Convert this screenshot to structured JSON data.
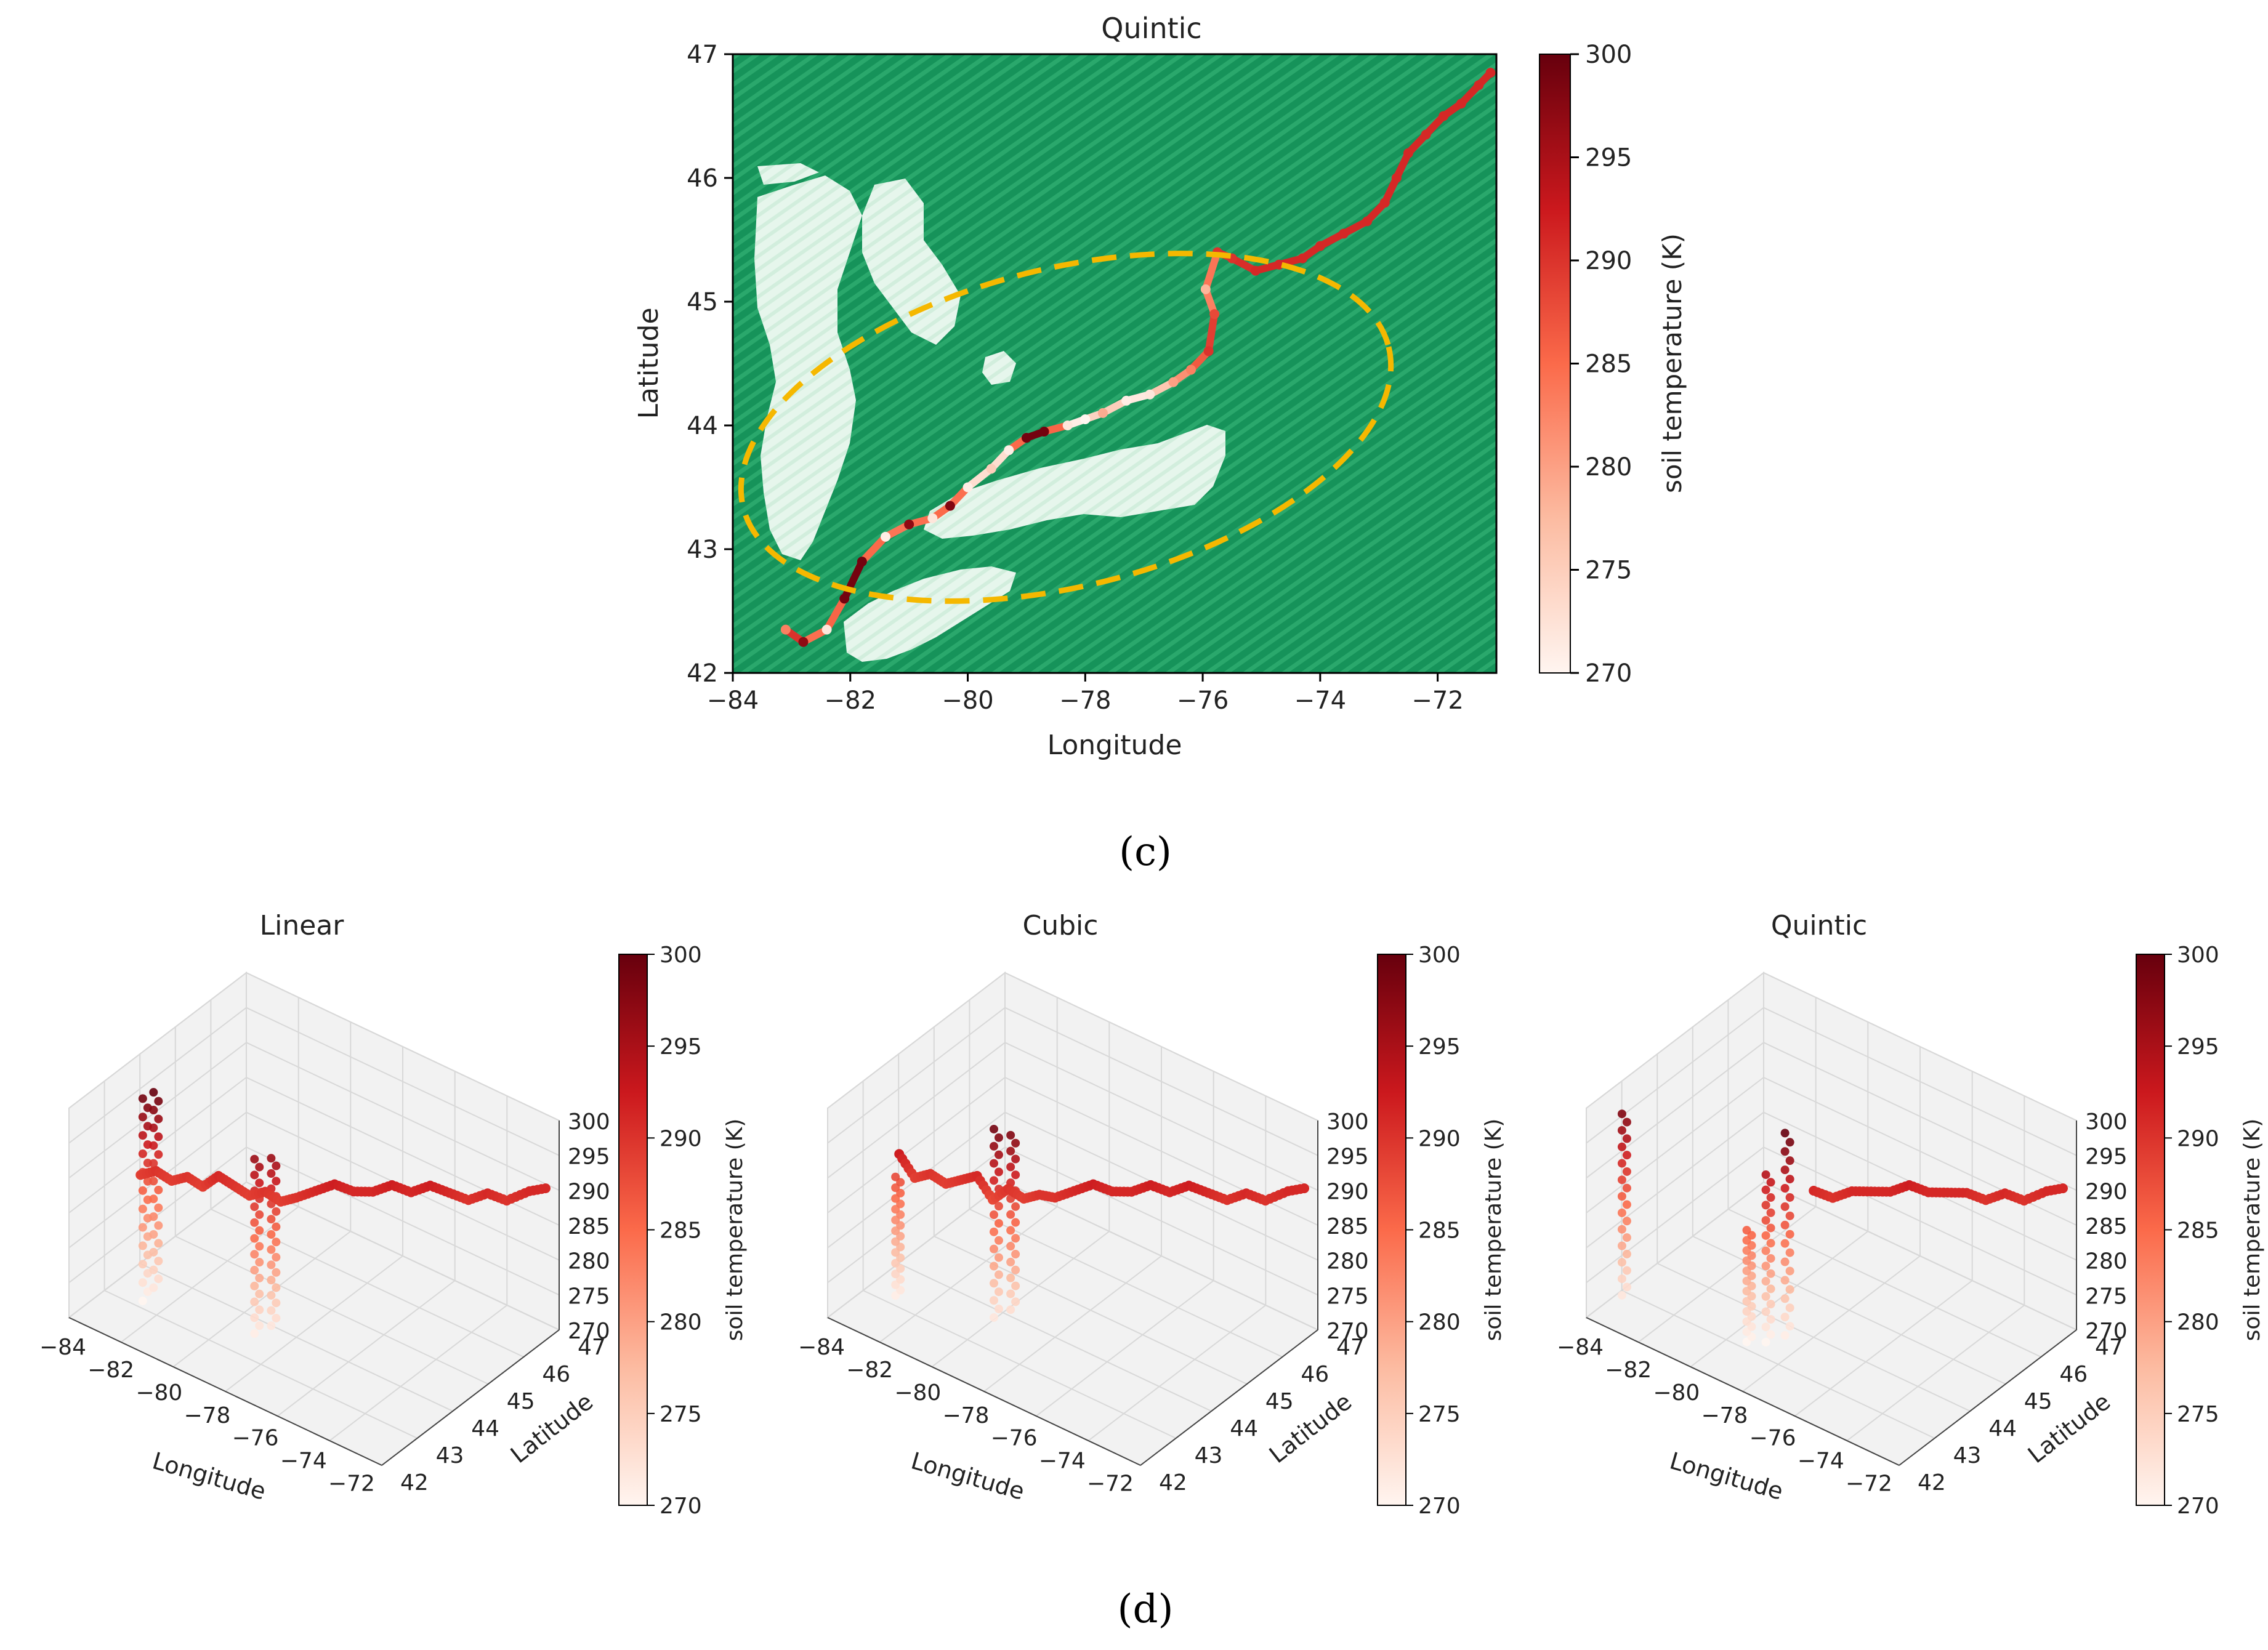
{
  "chart_data": [
    {
      "id": "c",
      "type": "scatter",
      "panel_label": "(c)",
      "title": "Quintic",
      "xlabel": "Longitude",
      "ylabel": "Latitude",
      "xlim": [
        -84,
        -71
      ],
      "ylim": [
        42,
        47
      ],
      "xticks": [
        -84,
        -82,
        -80,
        -78,
        -76,
        -74,
        -72
      ],
      "xtick_labels": [
        "−84",
        "−82",
        "−80",
        "−78",
        "−76",
        "−74",
        "−72"
      ],
      "yticks": [
        42,
        43,
        44,
        45,
        46,
        47
      ],
      "ytick_labels": [
        "42",
        "43",
        "44",
        "45",
        "46",
        "47"
      ],
      "colorbar": {
        "label": "soil temperature (K)",
        "range": [
          270,
          300
        ],
        "ticks": [
          270,
          275,
          280,
          285,
          290,
          295,
          300
        ],
        "tick_labels": [
          "270",
          "275",
          "280",
          "285",
          "290",
          "295",
          "300"
        ],
        "colors": [
          "#fff5f0",
          "#fcbba1",
          "#fb6a4a",
          "#cb181d",
          "#67000d"
        ]
      },
      "background": {
        "land_color": "#1a9a5c",
        "water_color": "#e3f4ea"
      },
      "track": {
        "lon": [
          -83.1,
          -82.8,
          -82.4,
          -82.1,
          -81.8,
          -81.4,
          -81.0,
          -80.6,
          -80.3,
          -80.0,
          -79.6,
          -79.3,
          -79.0,
          -78.7,
          -78.3,
          -78.0,
          -77.7,
          -77.3,
          -76.9,
          -76.5,
          -76.2,
          -75.9,
          -75.8,
          -75.95,
          -75.75,
          -75.5,
          -75.1,
          -74.7,
          -74.3,
          -74.0,
          -73.6,
          -73.2,
          -72.9,
          -72.7,
          -72.5,
          -72.2,
          -71.9,
          -71.6,
          -71.3,
          -71.1
        ],
        "lat": [
          42.35,
          42.25,
          42.35,
          42.6,
          42.9,
          43.1,
          43.2,
          43.25,
          43.35,
          43.5,
          43.65,
          43.8,
          43.9,
          43.95,
          44.0,
          44.05,
          44.1,
          44.2,
          44.25,
          44.35,
          44.45,
          44.6,
          44.9,
          45.1,
          45.4,
          45.35,
          45.25,
          45.3,
          45.35,
          45.45,
          45.55,
          45.65,
          45.8,
          46.0,
          46.2,
          46.35,
          46.5,
          46.6,
          46.75,
          46.85
        ],
        "temp": [
          283,
          297,
          272,
          299,
          299,
          271,
          297,
          272,
          298,
          271,
          275,
          271,
          299,
          299,
          272,
          270,
          279,
          271,
          272,
          280,
          283,
          290,
          288,
          278,
          290,
          290,
          291,
          291,
          291,
          291,
          291,
          291,
          291,
          291,
          291,
          291,
          291,
          291,
          291,
          291
        ]
      },
      "annotation": {
        "shape": "dashed ellipse",
        "color": "#f5b800",
        "center": [
          -78.8,
          43.7
        ],
        "radii": [
          5.3,
          1.45
        ]
      }
    },
    {
      "id": "d1",
      "type": "scatter3d",
      "panel_label": "(d)",
      "title": "Linear",
      "xlabel": "Longitude",
      "ylabel": "Latitude",
      "zlabel": "",
      "xlim": [
        -84,
        -71
      ],
      "ylim": [
        42,
        47
      ],
      "zlim": [
        270,
        300
      ],
      "xticks": [
        "−84",
        "−82",
        "−80",
        "−78",
        "−76",
        "−74",
        "−72"
      ],
      "yticks": [
        "42",
        "43",
        "44",
        "45",
        "46",
        "47"
      ],
      "zticks": [
        "270",
        "275",
        "280",
        "285",
        "290",
        "295",
        "300"
      ],
      "colorbar": {
        "label": "soil temperature (K)",
        "range": [
          270,
          300
        ],
        "tick_labels": [
          "270",
          "275",
          "280",
          "285",
          "290",
          "295",
          "300"
        ]
      },
      "curve": {
        "lon": [
          -82.5,
          -82.0,
          -81.5,
          -81.0,
          -80.5,
          -80.0,
          -79.5,
          -79.0,
          -78.5,
          -78.0,
          -77.5,
          -77.0,
          -76.5,
          -76.0,
          -75.5,
          -75.0,
          -74.5,
          -74.0,
          -73.5,
          -73.0,
          -72.5,
          -72.0,
          -71.5,
          -71.1
        ],
        "lat": [
          43.0,
          43.1,
          43.2,
          43.3,
          43.4,
          43.5,
          43.6,
          43.7,
          43.8,
          43.9,
          44.0,
          44.2,
          44.4,
          44.6,
          44.8,
          45.0,
          45.2,
          45.4,
          45.6,
          45.8,
          46.0,
          46.2,
          46.5,
          46.8
        ],
        "temp": [
          289,
          290,
          289,
          290,
          289,
          291,
          290,
          289,
          290,
          289,
          290,
          291,
          292,
          291,
          291,
          292,
          291,
          292,
          291,
          290,
          291,
          290,
          291,
          291
        ]
      },
      "columns": [
        {
          "lon": -82.6,
          "lat": 43.2,
          "tmin": 270,
          "tmax": 299
        },
        {
          "lon": -82.3,
          "lat": 43.3,
          "tmin": 272,
          "tmax": 300
        },
        {
          "lon": -78.4,
          "lat": 43.5,
          "tmin": 271,
          "tmax": 296
        },
        {
          "lon": -78.0,
          "lat": 43.7,
          "tmin": 272,
          "tmax": 296
        }
      ]
    },
    {
      "id": "d2",
      "type": "scatter3d",
      "title": "Cubic",
      "xlabel": "Longitude",
      "ylabel": "Latitude",
      "zlabel": "",
      "xlim": [
        -84,
        -71
      ],
      "ylim": [
        42,
        47
      ],
      "zlim": [
        270,
        300
      ],
      "xticks": [
        "−84",
        "−82",
        "−80",
        "−78",
        "−76",
        "−74",
        "−72"
      ],
      "yticks": [
        "42",
        "43",
        "44",
        "45",
        "46",
        "47"
      ],
      "zticks": [
        "270",
        "275",
        "280",
        "285",
        "290",
        "295",
        "300"
      ],
      "colorbar": {
        "label": "soil temperature (K)",
        "range": [
          270,
          300
        ],
        "tick_labels": [
          "270",
          "275",
          "280",
          "285",
          "290",
          "295",
          "300"
        ]
      },
      "curve": {
        "lon": [
          -82.5,
          -82.0,
          -81.5,
          -81.0,
          -80.5,
          -80.0,
          -79.5,
          -79.0,
          -78.5,
          -78.0,
          -77.5,
          -77.0,
          -76.5,
          -76.0,
          -75.5,
          -75.0,
          -74.5,
          -74.0,
          -73.5,
          -73.0,
          -72.5,
          -72.0,
          -71.5,
          -71.1
        ],
        "lat": [
          43.0,
          43.1,
          43.2,
          43.3,
          43.4,
          43.5,
          43.6,
          43.7,
          43.8,
          43.9,
          44.0,
          44.2,
          44.4,
          44.6,
          44.8,
          45.0,
          45.2,
          45.4,
          45.6,
          45.8,
          46.0,
          46.2,
          46.5,
          46.8
        ],
        "temp": [
          292,
          289,
          290,
          289,
          290,
          291,
          288,
          290,
          289,
          290,
          290,
          291,
          292,
          291,
          291,
          292,
          291,
          292,
          291,
          290,
          291,
          290,
          291,
          291
        ]
      },
      "columns": [
        {
          "lon": -82.7,
          "lat": 43.1,
          "tmin": 271,
          "tmax": 288
        },
        {
          "lon": -79.2,
          "lat": 43.5,
          "tmin": 272,
          "tmax": 299
        },
        {
          "lon": -78.8,
          "lat": 43.7,
          "tmin": 273,
          "tmax": 298
        }
      ]
    },
    {
      "id": "d3",
      "type": "scatter3d",
      "title": "Quintic",
      "xlabel": "Longitude",
      "ylabel": "Latitude",
      "zlabel": "",
      "xlim": [
        -84,
        -71
      ],
      "ylim": [
        42,
        47
      ],
      "zlim": [
        270,
        300
      ],
      "xticks": [
        "−84",
        "−82",
        "−80",
        "−78",
        "−76",
        "−74",
        "−72"
      ],
      "yticks": [
        "42",
        "43",
        "44",
        "45",
        "46",
        "47"
      ],
      "zticks": [
        "270",
        "275",
        "280",
        "285",
        "290",
        "295",
        "300"
      ],
      "colorbar": {
        "label": "soil temperature (K)",
        "range": [
          270,
          300
        ],
        "tick_labels": [
          "270",
          "275",
          "280",
          "285",
          "290",
          "295",
          "300"
        ]
      },
      "curve": {
        "lon": [
          -77.5,
          -77.0,
          -76.5,
          -76.0,
          -75.5,
          -75.0,
          -74.5,
          -74.0,
          -73.5,
          -73.0,
          -72.5,
          -72.0,
          -71.5,
          -71.1
        ],
        "lat": [
          44.0,
          44.2,
          44.4,
          44.6,
          44.8,
          45.0,
          45.2,
          45.4,
          45.6,
          45.8,
          46.0,
          46.2,
          46.5,
          46.8
        ],
        "temp": [
          291,
          290,
          291,
          291,
          291,
          292,
          291,
          291,
          291,
          290,
          291,
          290,
          291,
          291
        ]
      },
      "columns": [
        {
          "lon": -83.3,
          "lat": 42.6,
          "tmin": 272,
          "tmax": 298
        },
        {
          "lon": -79.0,
          "lat": 43.2,
          "tmin": 270,
          "tmax": 286
        },
        {
          "lon": -78.5,
          "lat": 43.4,
          "tmin": 270,
          "tmax": 294
        },
        {
          "lon": -78.0,
          "lat": 43.6,
          "tmin": 271,
          "tmax": 300
        }
      ]
    }
  ]
}
